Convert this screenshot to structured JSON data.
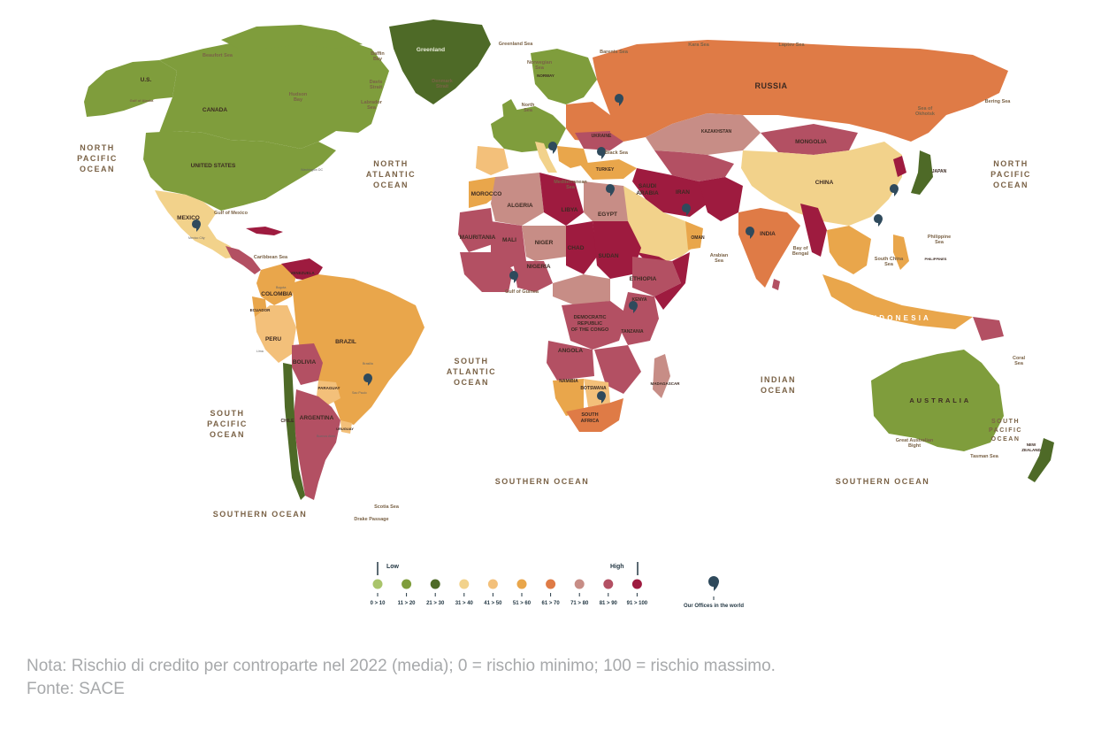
{
  "oceans": {
    "north_pacific_left": [
      "NORTH",
      "PACIFIC",
      "OCEAN"
    ],
    "north_pacific_right": [
      "NORTH",
      "PACIFIC",
      "OCEAN"
    ],
    "north_atlantic": [
      "NORTH",
      "ATLANTIC",
      "OCEAN"
    ],
    "south_atlantic": [
      "SOUTH",
      "ATLANTIC",
      "OCEAN"
    ],
    "south_pacific_left": [
      "SOUTH",
      "PACIFIC",
      "OCEAN"
    ],
    "south_pacific_right": [
      "SOUTH",
      "PACIFIC",
      "OCEAN"
    ],
    "indian": [
      "INDIAN",
      "OCEAN"
    ],
    "southern_1": "SOUTHERN OCEAN",
    "southern_2": "SOUTHERN OCEAN",
    "southern_3": "SOUTHERN OCEAN"
  },
  "countries": {
    "russia": "RUSSIA",
    "canada": "CANADA",
    "us": "U.S.",
    "united_states": "UNITED STATES",
    "greenland": "Greenland",
    "mexico": "MEXICO",
    "brazil": "BRAZIL",
    "argentina": "ARGENTINA",
    "peru": "PERU",
    "bolivia": "BOLIVIA",
    "colombia": "COLOMBIA",
    "venezuela": "VENEZUELA",
    "chile": "CHILE",
    "paraguay": "PARAGUAY",
    "uruguay": "URUGUAY",
    "ecuador": "ECUADOR",
    "algeria": "ALGERIA",
    "libya": "LIBYA",
    "egypt": "EGYPT",
    "mali": "MALI",
    "niger": "NIGER",
    "chad": "CHAD",
    "sudan": "SUDAN",
    "nigeria": "NIGERIA",
    "mauritania": "MAURITANIA",
    "morocco": "MOROCCO",
    "ethiopia": "ETHIOPIA",
    "drc": [
      "DEMOCRATIC",
      "REPUBLIC",
      "OF THE CONGO"
    ],
    "angola": "ANGOLA",
    "namibia": "NAMIBIA",
    "botswana": "BOTSWANA",
    "south_africa": [
      "SOUTH",
      "AFRICA"
    ],
    "tanzania": "TANZANIA",
    "kenya": "KENYA",
    "madagascar": "MADAGASCAR",
    "saudi_arabia": [
      "SAUDI",
      "ARABIA"
    ],
    "iran": "IRAN",
    "oman": "OMAN",
    "kazakhstan": "KAZAKHSTAN",
    "mongolia": "MONGOLIA",
    "china": "CHINA",
    "india": "INDIA",
    "indonesia": "I N D O N E S I A",
    "australia": "A U S T R A L I A",
    "japan": "JAPAN",
    "philippines": "PHILIPPINES",
    "turkey": "TURKEY",
    "ukraine": "UKRAINE",
    "norway": "NORWAY",
    "new_zealand": [
      "NEW",
      "ZEALAND"
    ]
  },
  "seas": {
    "beaufort": "Beaufort Sea",
    "baffin_bay": [
      "Baffin",
      "Bay"
    ],
    "hudson_bay": [
      "Hudson",
      "Bay"
    ],
    "labrador": [
      "Labrador",
      "Sea"
    ],
    "gulf_of_mexico": "Gulf of Mexico",
    "caribbean": "Caribbean Sea",
    "greenland_sea": "Greenland Sea",
    "norwegian": [
      "Norwegian",
      "Sea"
    ],
    "barents": "Barents Sea",
    "kara": "Kara Sea",
    "laptev": "Laptev Sea",
    "bering": "Bering Sea",
    "okhotsk": [
      "Sea of",
      "Okhotsk"
    ],
    "mediterranean": [
      "Mediterranean",
      "Sea"
    ],
    "black_sea": "Black Sea",
    "arabian_sea": [
      "Arabian",
      "Sea"
    ],
    "bay_of_bengal": [
      "Bay of",
      "Bengal"
    ],
    "south_china": [
      "South China",
      "Sea"
    ],
    "philippine": [
      "Philippine",
      "Sea"
    ],
    "coral": [
      "Coral",
      "Sea"
    ],
    "tasman": "Tasman Sea",
    "great_australian_bight": [
      "Great Australian",
      "Bight"
    ],
    "north_sea": [
      "North",
      "Sea"
    ],
    "gulf_of_guinea": "Gulf of Guinea",
    "scotia": "Scotia Sea",
    "drake": "Drake Passage",
    "gulf_of_alaska": "Gulf of Alaska",
    "davis": [
      "Davis",
      "Strait"
    ],
    "denmark_strait": [
      "Denmark",
      "Strait"
    ]
  },
  "cities": {
    "washington": "Washington DC",
    "mexico_city": "Mexico City",
    "sao_paulo": "Sao Paulo",
    "brasilia": "Brasilia",
    "buenos_aires": "Buenos Aires",
    "lima": "Lima",
    "bogota": "Bogota"
  },
  "legend": {
    "low": "Low",
    "high": "High",
    "offices_label": "Our Offices in the world",
    "offices_color": "#2f4a5c",
    "bins": [
      {
        "label": "0 > 10",
        "color": "#a9c46b"
      },
      {
        "label": "11 > 20",
        "color": "#7f9d3c"
      },
      {
        "label": "21 > 30",
        "color": "#4e6a27"
      },
      {
        "label": "31 > 40",
        "color": "#f2d28b"
      },
      {
        "label": "41 > 50",
        "color": "#f3c07a"
      },
      {
        "label": "51 > 60",
        "color": "#e9a64b"
      },
      {
        "label": "61 > 70",
        "color": "#df7b46"
      },
      {
        "label": "71 > 80",
        "color": "#c78d86"
      },
      {
        "label": "81 > 90",
        "color": "#b35063"
      },
      {
        "label": "91 > 100",
        "color": "#9e1b3f"
      }
    ]
  },
  "note": {
    "line1": "Nota: Rischio di credito per controparte nel 2022 (media); 0 = rischio minimo; 100 = rischio massimo.",
    "line2": "Fonte: SACE"
  }
}
